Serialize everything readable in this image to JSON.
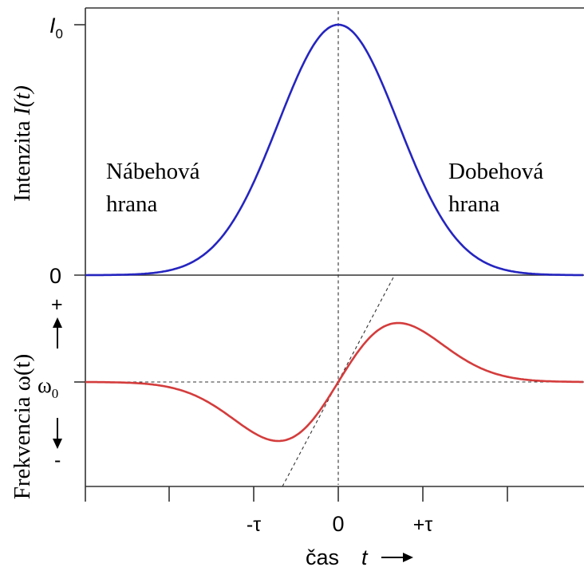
{
  "top_panel": {
    "ylabel": "Intenzita",
    "ylabel_var": "I(t)",
    "ytick_top_var": "I",
    "ytick_top_sub": "0",
    "ytick_bottom": "0",
    "left_note_line1": "Nábehová",
    "left_note_line2": "hrana",
    "right_note_line1": "Dobehová",
    "right_note_line2": "hrana",
    "curve_color": "#2525c0"
  },
  "bottom_panel": {
    "ylabel": "Frekvencia",
    "ylabel_var": "ω(t)",
    "ytick_center_var": "ω",
    "ytick_center_sub": "0",
    "plus_sign": "+",
    "minus_sign": "-",
    "curve_color": "#d43c3c"
  },
  "x_axis": {
    "label_word": "čas",
    "label_var": "t",
    "tick_labels": [
      "-τ",
      "0",
      "+τ"
    ],
    "tick_values": [
      -1,
      0,
      1
    ]
  },
  "chart_data": [
    {
      "type": "line",
      "title": "",
      "ylabel": "Intenzita I(t)",
      "xlim": [
        -4.2,
        4.2
      ],
      "ylim": [
        0,
        1
      ],
      "yticks": [
        "0",
        "I0"
      ],
      "series": [
        {
          "function": "gaussian",
          "peak_x": 0,
          "peak_y": 1,
          "width": 1
        }
      ]
    },
    {
      "type": "line",
      "title": "",
      "ylabel": "Frekvencia ω(t)",
      "xlabel": "čas t",
      "xlim": [
        -4.2,
        4.2
      ],
      "yticks": [
        "-",
        "ω0",
        "+"
      ],
      "xticks": [
        "-τ",
        "0",
        "+τ"
      ],
      "series": [
        {
          "function": "derivative-of-gaussian",
          "max_x": 1,
          "min_x": -1,
          "center_y": "ω0"
        }
      ]
    }
  ]
}
